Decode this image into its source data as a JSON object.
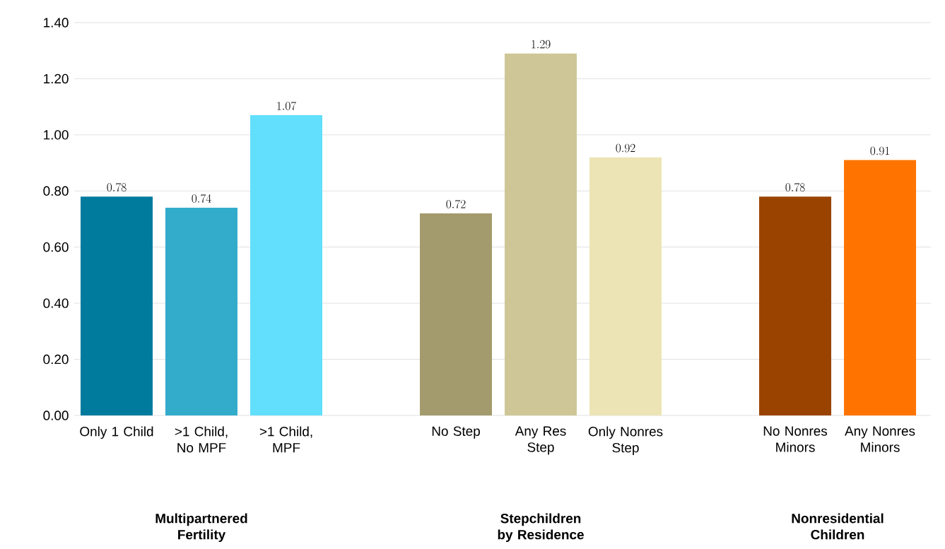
{
  "chart_data": {
    "type": "bar",
    "categories": [
      "Only 1 Child",
      ">1 Child, No MPF",
      ">1 Child, MPF",
      null,
      "No Step",
      "Any Res Step",
      "Only Nonres Step",
      null,
      "No Nonres Minors",
      "Any Nonres Minors"
    ],
    "values": [
      0.78,
      0.74,
      1.07,
      null,
      0.72,
      1.29,
      0.92,
      null,
      0.78,
      0.91
    ],
    "colors": [
      "#007b9e",
      "#33accc",
      "#62dffc",
      null,
      "#a39b6d",
      "#cec696",
      "#ece4b5",
      null,
      "#9a4300",
      "#ff7400"
    ],
    "ylim": [
      0,
      1.4
    ],
    "yticks": [
      {
        "value": 0,
        "label": "0.00"
      },
      {
        "value": 0.2,
        "label": "0.20"
      },
      {
        "value": 0.4,
        "label": "0.40"
      },
      {
        "value": 0.6,
        "label": "0.60"
      },
      {
        "value": 0.8,
        "label": "0.80"
      },
      {
        "value": 1.0,
        "label": "1.00"
      },
      {
        "value": 1.2,
        "label": "1.20"
      },
      {
        "value": 1.4,
        "label": "1.40"
      }
    ],
    "grid": "y",
    "data_labels": true,
    "annotations": [
      "Multipartnered Fertility",
      "Stepchildren by Residence",
      "Nonresidential Children"
    ]
  }
}
